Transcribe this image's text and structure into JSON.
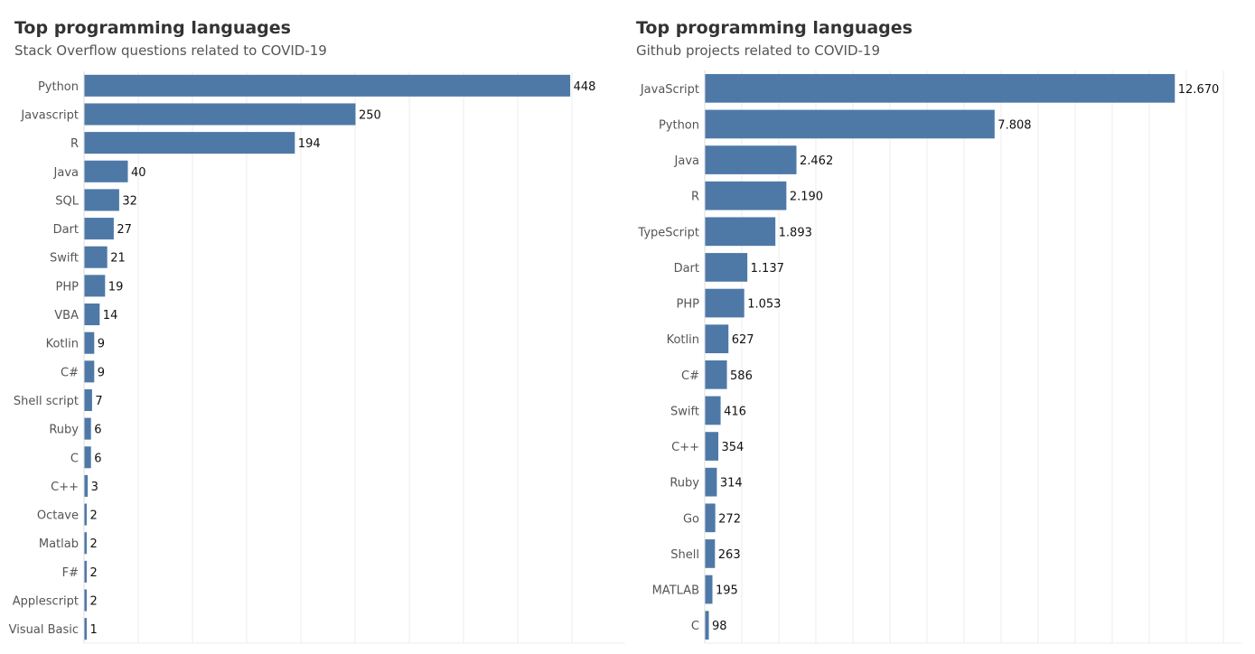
{
  "chart_data": [
    {
      "type": "bar",
      "orientation": "horizontal",
      "title": "Top programming languages",
      "subtitle": "Stack Overflow questions related to COVID-19",
      "categories": [
        "Python",
        "Javascript",
        "R",
        "Java",
        "SQL",
        "Dart",
        "Swift",
        "PHP",
        "VBA",
        "Kotlin",
        "C#",
        "Shell script",
        "Ruby",
        "C",
        "C++",
        "Octave",
        "Matlab",
        "F#",
        "Applescript",
        "Visual Basic"
      ],
      "values": [
        448,
        250,
        194,
        40,
        32,
        27,
        21,
        19,
        14,
        9,
        9,
        7,
        6,
        6,
        3,
        2,
        2,
        2,
        2,
        1
      ],
      "value_labels": [
        "448",
        "250",
        "194",
        "40",
        "32",
        "27",
        "21",
        "19",
        "14",
        "9",
        "9",
        "7",
        "6",
        "6",
        "3",
        "2",
        "2",
        "2",
        "2",
        "1"
      ],
      "xlim": [
        0,
        450
      ],
      "grid": true,
      "bar_color": "#4e79a7"
    },
    {
      "type": "bar",
      "orientation": "horizontal",
      "title": "Top programming languages",
      "subtitle": "Github projects related to COVID-19",
      "categories": [
        "JavaScript",
        "Python",
        "Java",
        "R",
        "TypeScript",
        "Dart",
        "PHP",
        "Kotlin",
        "C#",
        "Swift",
        "C++",
        "Ruby",
        "Go",
        "Shell",
        "MATLAB",
        "C"
      ],
      "values": [
        12670,
        7808,
        2462,
        2190,
        1893,
        1137,
        1053,
        627,
        586,
        416,
        354,
        314,
        272,
        263,
        195,
        98
      ],
      "value_labels": [
        "12.670",
        "7.808",
        "2.462",
        "2.190",
        "1.893",
        "1.137",
        "1.053",
        "627",
        "586",
        "416",
        "354",
        "314",
        "272",
        "263",
        "195",
        "98"
      ],
      "xlim": [
        0,
        12700
      ],
      "grid": true,
      "bar_color": "#4e79a7"
    }
  ]
}
